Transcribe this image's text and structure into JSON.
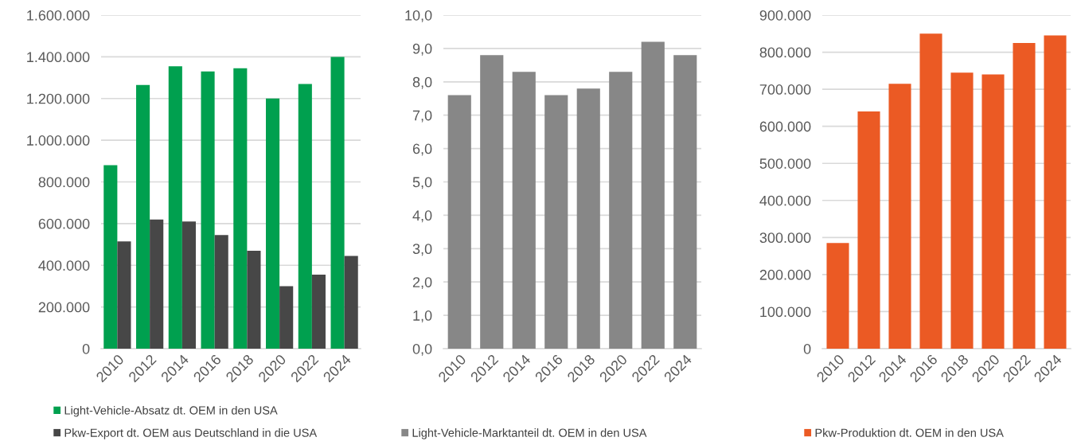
{
  "chart_data": [
    {
      "type": "bar",
      "categories": [
        "2010",
        "2012",
        "2014",
        "2016",
        "2018",
        "2020",
        "2022",
        "2024"
      ],
      "series": [
        {
          "name": "Light-Vehicle-Absatz dt. OEM in den USA",
          "color": "#00a04f",
          "values": [
            880000,
            1265000,
            1355000,
            1330000,
            1345000,
            1200000,
            1270000,
            1400000
          ]
        },
        {
          "name": "Pkw-Export dt. OEM aus Deutschland in die USA",
          "color": "#474747",
          "values": [
            515000,
            620000,
            610000,
            545000,
            470000,
            300000,
            355000,
            445000
          ]
        }
      ],
      "ylim": [
        0,
        1600000
      ],
      "yticks": [
        0,
        {
          "value": 200000,
          "label": "200.000"
        },
        {
          "value": 400000,
          "label": "400.000"
        },
        {
          "value": 600000,
          "label": "600.000"
        },
        {
          "value": 800000,
          "label": "800.000"
        },
        {
          "value": 1000000,
          "label": "1.000.000"
        },
        {
          "value": 1200000,
          "label": "1.200.000"
        },
        {
          "value": 1400000,
          "label": "1.400.000"
        },
        {
          "value": 1600000,
          "label": "1.600.000"
        }
      ],
      "grid": "y",
      "legend": "bottom"
    },
    {
      "type": "bar",
      "categories": [
        "2010",
        "2012",
        "2014",
        "2016",
        "2018",
        "2020",
        "2022",
        "2024"
      ],
      "series": [
        {
          "name": "Light-Vehicle-Marktanteil dt. OEM in den USA",
          "color": "#878787",
          "values": [
            7.6,
            8.8,
            8.3,
            7.6,
            7.8,
            8.3,
            9.2,
            8.8
          ]
        }
      ],
      "ylim": [
        0,
        10
      ],
      "yticks": [
        {
          "value": 0,
          "label": "0,0"
        },
        {
          "value": 1,
          "label": "1,0"
        },
        {
          "value": 2,
          "label": "2,0"
        },
        {
          "value": 3,
          "label": "3,0"
        },
        {
          "value": 4,
          "label": "4,0"
        },
        {
          "value": 5,
          "label": "5,0"
        },
        {
          "value": 6,
          "label": "6,0"
        },
        {
          "value": 7,
          "label": "7,0"
        },
        {
          "value": 8,
          "label": "8,0"
        },
        {
          "value": 9,
          "label": "9,0"
        },
        {
          "value": 10,
          "label": "10,0"
        }
      ],
      "grid": "y",
      "legend": "bottom"
    },
    {
      "type": "bar",
      "categories": [
        "2010",
        "2012",
        "2014",
        "2016",
        "2018",
        "2020",
        "2022",
        "2024"
      ],
      "series": [
        {
          "name": "Pkw-Produktion dt. OEM in den USA",
          "color": "#eb5a24",
          "values": [
            285000,
            640000,
            715000,
            850000,
            745000,
            740000,
            825000,
            845000
          ]
        }
      ],
      "ylim": [
        0,
        900000
      ],
      "yticks": [
        0,
        {
          "value": 100000,
          "label": "100.000"
        },
        {
          "value": 200000,
          "label": "200.000"
        },
        {
          "value": 300000,
          "label": "300.000"
        },
        {
          "value": 400000,
          "label": "400.000"
        },
        {
          "value": 500000,
          "label": "500.000"
        },
        {
          "value": 600000,
          "label": "600.000"
        },
        {
          "value": 700000,
          "label": "700.000"
        },
        {
          "value": 800000,
          "label": "800.000"
        },
        {
          "value": 900000,
          "label": "900.000"
        }
      ],
      "grid": "y",
      "legend": "bottom"
    }
  ]
}
